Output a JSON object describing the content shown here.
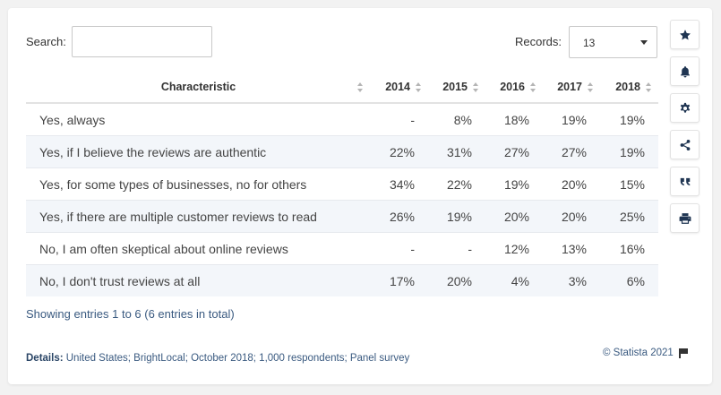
{
  "search": {
    "label": "Search:",
    "value": "",
    "placeholder": ""
  },
  "records": {
    "label": "Records:",
    "value": "13"
  },
  "table": {
    "headers": [
      "Characteristic",
      "2014",
      "2015",
      "2016",
      "2017",
      "2018"
    ],
    "rows": [
      [
        "Yes, always",
        "-",
        "8%",
        "18%",
        "19%",
        "19%"
      ],
      [
        "Yes, if I believe the reviews are authentic",
        "22%",
        "31%",
        "27%",
        "27%",
        "19%"
      ],
      [
        "Yes, for some types of businesses, no for others",
        "34%",
        "22%",
        "19%",
        "20%",
        "15%"
      ],
      [
        "Yes, if there are multiple customer reviews to read",
        "26%",
        "19%",
        "20%",
        "20%",
        "25%"
      ],
      [
        "No, I am often skeptical about online reviews",
        "-",
        "-",
        "12%",
        "13%",
        "16%"
      ],
      [
        "No, I don't trust reviews at all",
        "17%",
        "20%",
        "4%",
        "3%",
        "6%"
      ]
    ]
  },
  "footer": {
    "entries": "Showing entries 1 to 6 (6 entries in total)",
    "details_label": "Details:",
    "details_text": " United States; BrightLocal; October 2018; 1,000 respondents; Panel survey",
    "copyright": "© Statista 2021"
  },
  "sidebar": {
    "icons": [
      "star-icon",
      "bell-icon",
      "gear-icon",
      "share-icon",
      "quote-icon",
      "print-icon"
    ]
  },
  "colors": {
    "accent": "#1f3552",
    "link": "#3a5a80",
    "row_alt": "#f3f6fa"
  }
}
